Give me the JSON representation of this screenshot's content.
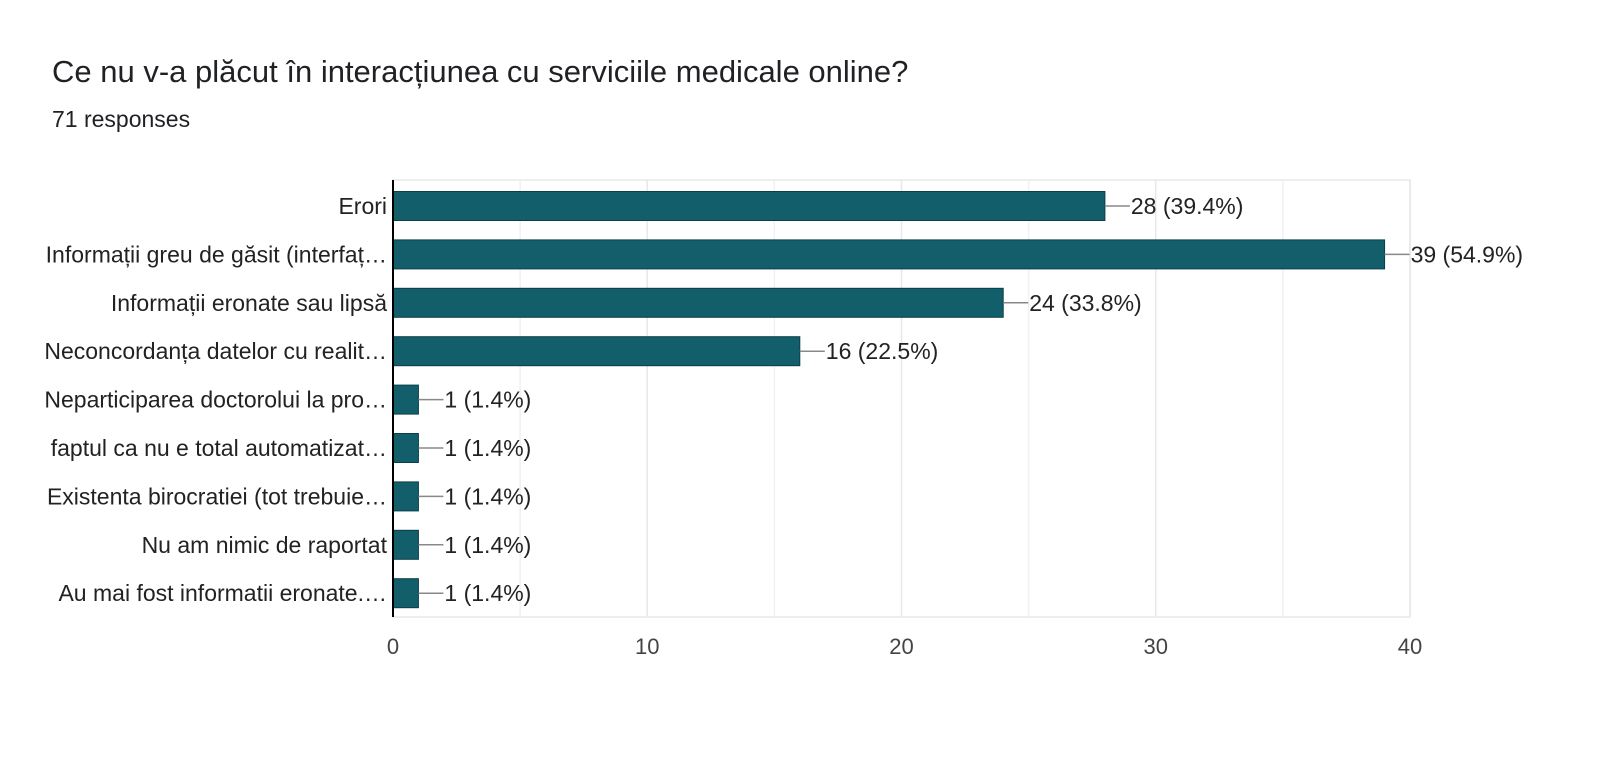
{
  "header": {
    "title": "Ce nu v-a plăcut în interacțiunea cu serviciile medicale online?",
    "responses": "71 responses"
  },
  "colors": {
    "bar": "#125e6b",
    "bar_outline": "#0b3f48",
    "grid": "#e8e8e8",
    "axis": "#000000",
    "leader": "#888888"
  },
  "chart_data": {
    "type": "bar",
    "orientation": "horizontal",
    "categories": [
      "Erori",
      "Informații greu de găsit (interfaț…",
      "Informații eronate sau lipsă",
      "Neconcordanța datelor cu realit…",
      "Neparticiparea doctorolui la pro…",
      "faptul ca nu e total automatizat…",
      "Existenta birocratiei (tot trebuie…",
      "Nu am nimic de raportat",
      "Au mai fost informatii eronate.…"
    ],
    "values": [
      28,
      39,
      24,
      16,
      1,
      1,
      1,
      1,
      1
    ],
    "value_labels": [
      "28 (39.4%)",
      "39 (54.9%)",
      "24 (33.8%)",
      "16 (22.5%)",
      "1 (1.4%)",
      "1 (1.4%)",
      "1 (1.4%)",
      "1 (1.4%)",
      "1 (1.4%)"
    ],
    "xlim": [
      0,
      40
    ],
    "x_ticks": [
      "0",
      "10",
      "20",
      "30",
      "40"
    ],
    "minor_gridlines": [
      5,
      15,
      25,
      35
    ],
    "grid": true
  }
}
